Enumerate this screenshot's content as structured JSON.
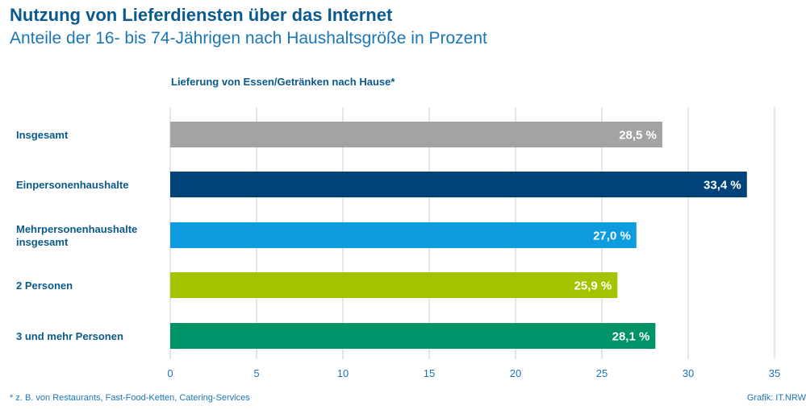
{
  "header": {
    "title": "Nutzung von Lieferdiensten über das Internet",
    "subtitle": "Anteile der 16- bis 74-Jährigen nach Haushaltsgröße in Prozent"
  },
  "footer": {
    "footnote": "* z. B. von Restaurants, Fast-Food-Ketten, Catering-Services",
    "source": "Grafik: IT.NRW"
  },
  "chart_data": {
    "type": "bar",
    "orientation": "horizontal",
    "title": "Lieferung von Essen/Getränken nach Hause*",
    "categories": [
      [
        "Insgesamt"
      ],
      [
        "Einpersonenhaushalte"
      ],
      [
        "Mehrpersonenhaushalte",
        "insgesamt"
      ],
      [
        "2 Personen"
      ],
      [
        "3 und mehr Personen"
      ]
    ],
    "values": [
      28.5,
      33.4,
      27.0,
      25.9,
      28.1
    ],
    "value_labels": [
      "28,5 %",
      "33,4 %",
      "27,0 %",
      "25,9 %",
      "28,1 %"
    ],
    "colors": [
      "#a3a3a6",
      "#00437a",
      "#0d9ce0",
      "#a4c400",
      "#00936a"
    ],
    "xlim": [
      0,
      35
    ],
    "xticks": [
      0,
      5,
      10,
      15,
      20,
      25,
      30,
      35
    ],
    "grid": true
  }
}
